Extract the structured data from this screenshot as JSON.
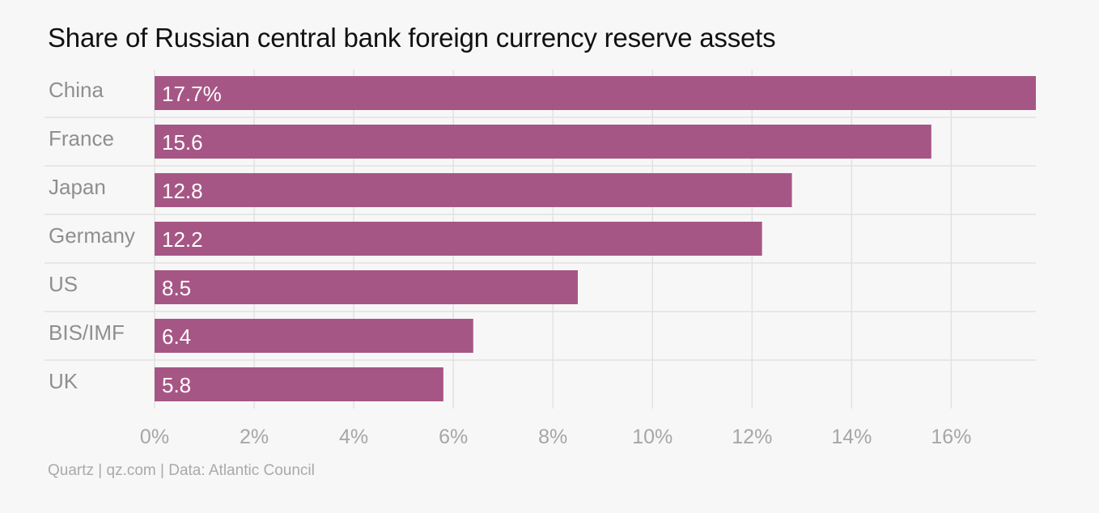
{
  "title": "Share of Russian central bank foreign currency reserve assets",
  "source": "Quartz | qz.com | Data: Atlantic Council",
  "colors": {
    "bar": "#a65685",
    "bar_label": "#ffffff",
    "category_label": "#8f8f8f",
    "tick_label": "#a6a6a6",
    "grid": "#e2e2e2",
    "background": "#f7f7f7",
    "title": "#111111"
  },
  "chart_data": {
    "type": "bar",
    "orientation": "horizontal",
    "title": "Share of Russian central bank foreign currency reserve assets",
    "xlabel": "",
    "ylabel": "",
    "categories": [
      "China",
      "France",
      "Japan",
      "Germany",
      "US",
      "BIS/IMF",
      "UK"
    ],
    "values": [
      17.7,
      15.6,
      12.8,
      12.2,
      8.5,
      6.4,
      5.8
    ],
    "value_labels": [
      "17.7%",
      "15.6",
      "12.8",
      "12.2",
      "8.5",
      "6.4",
      "5.8"
    ],
    "xlim": [
      0,
      17.7
    ],
    "xticks": [
      0,
      2,
      4,
      6,
      8,
      10,
      12,
      14,
      16
    ],
    "xtick_labels": [
      "0%",
      "2%",
      "4%",
      "6%",
      "8%",
      "10%",
      "12%",
      "14%",
      "16%"
    ],
    "grid": true,
    "legend": "none"
  }
}
